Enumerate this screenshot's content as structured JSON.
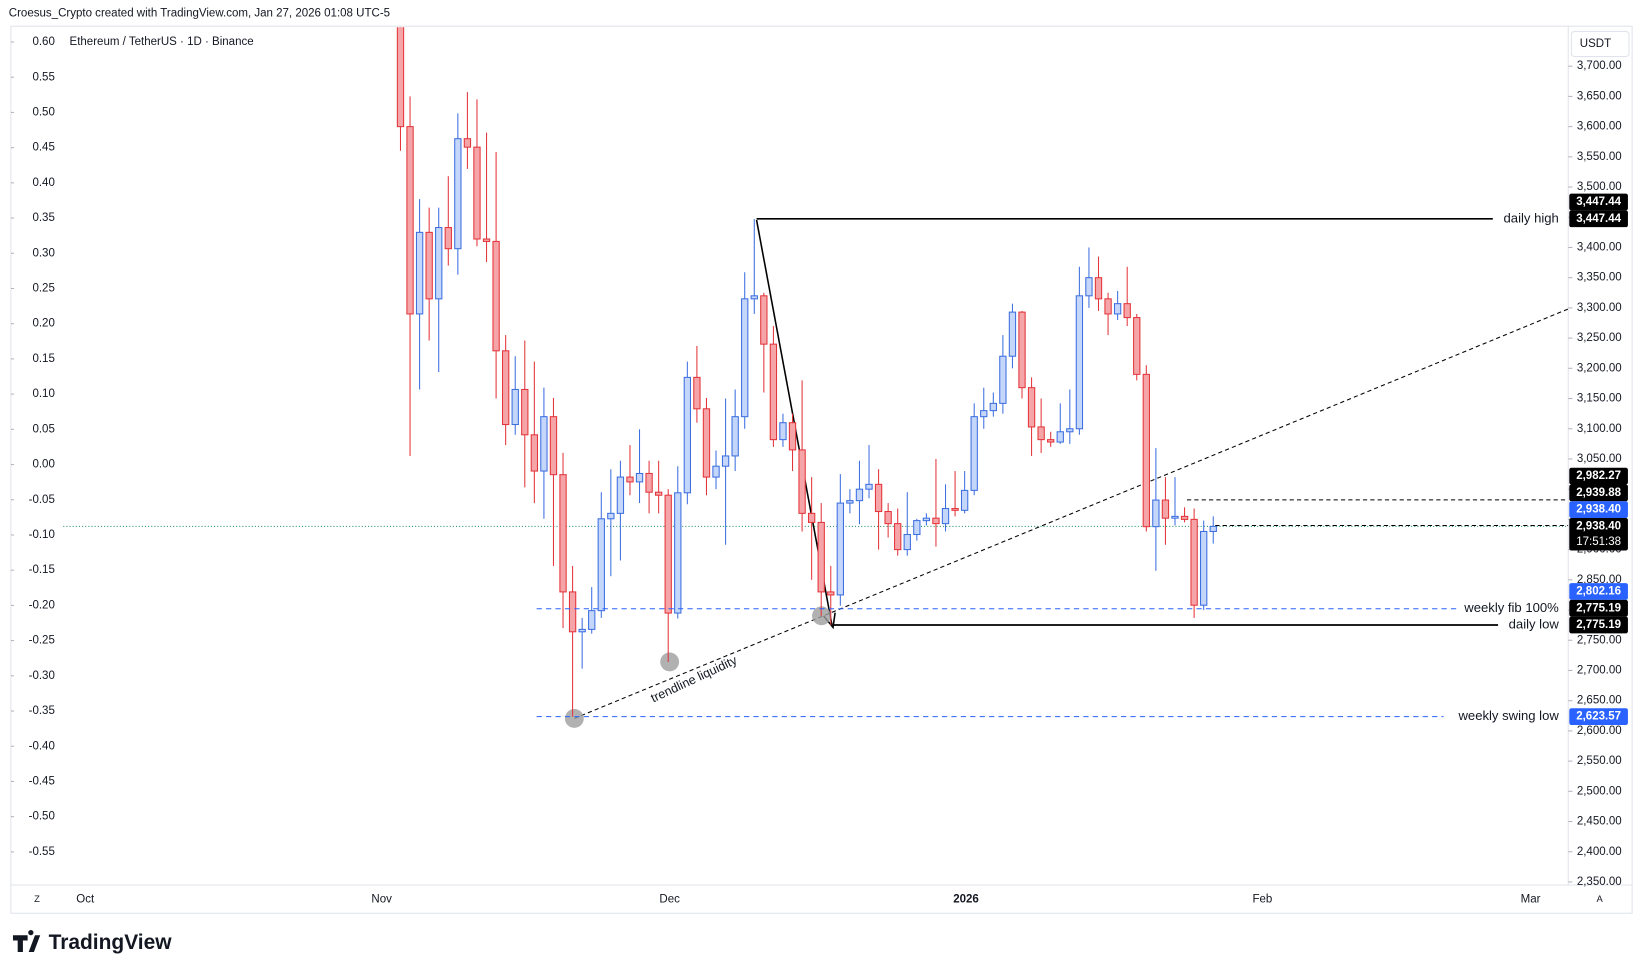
{
  "header": "Croesus_Crypto created with TradingView.com, Jan 27, 2026 01:08 UTC-5",
  "brand": "TradingView",
  "chart_data": {
    "type": "candlestick",
    "title": "Ethereum / TetherUS · 1D · Binance",
    "currency": "USDT",
    "up_color": "#3d6fe0",
    "up_fill": "#c4d6fa",
    "down_color": "#e3353b",
    "down_fill": "#f5a5a7",
    "open": [
      3880,
      3600,
      3290,
      3425,
      3315,
      3433,
      3398,
      3580,
      3566,
      3414,
      3410,
      3229,
      3107,
      3165,
      3090,
      3030,
      3120,
      3024,
      2830,
      2764,
      2768,
      2799,
      2951,
      2960,
      3020,
      3012,
      3026,
      2995,
      2990,
      2795,
      2994,
      3185,
      3133,
      3020,
      3038,
      3055,
      3120,
      3315,
      3320,
      3240,
      3082,
      3110,
      3065,
      2960,
      2945,
      2830,
      2825,
      2977,
      2981,
      3000,
      3008,
      2963,
      2943,
      2900,
      2925,
      2948,
      2952,
      2943,
      2968,
      2965,
      2998,
      3120,
      3130,
      3142,
      3220,
      3293,
      3168,
      3103,
      3082,
      3078,
      3095,
      3100,
      3320,
      3350,
      3315,
      3290,
      3307,
      3284,
      3190,
      2938,
      2982,
      2952,
      2955,
      2950,
      2808,
      2930
    ],
    "high": [
      3920,
      3650,
      3480,
      3466,
      3466,
      3518,
      3622,
      3657,
      3645,
      3590,
      3558,
      3255,
      3220,
      3246,
      3211,
      3168,
      3151,
      3060,
      2873,
      2787,
      2838,
      2995,
      3033,
      3047,
      3073,
      3099,
      3047,
      3047,
      3000,
      3038,
      3211,
      3237,
      3151,
      3064,
      3150,
      3165,
      3359,
      3447,
      3325,
      3270,
      3125,
      3125,
      3180,
      3020,
      2977,
      2873,
      3025,
      3000,
      3047,
      3073,
      3033,
      2977,
      2968,
      2995,
      2951,
      2960,
      3050,
      3008,
      3030,
      3030,
      3142,
      3168,
      3160,
      3255,
      3307,
      3295,
      3185,
      3150,
      3095,
      3142,
      3165,
      3368,
      3400,
      3385,
      3325,
      3328,
      3368,
      3290,
      3205,
      3068,
      3020,
      3020,
      2970,
      2968,
      2948,
      2955
    ],
    "low": [
      3560,
      3055,
      3165,
      3246,
      3194,
      3370,
      3355,
      3530,
      3402,
      3376,
      3150,
      3073,
      3090,
      3003,
      2977,
      2951,
      2873,
      2770,
      2623.57,
      2703,
      2761,
      2787,
      2856,
      2882,
      2990,
      2977,
      2960,
      2960,
      2714,
      2786,
      2975,
      3110,
      2990,
      3000,
      2908,
      3030,
      3100,
      3290,
      3160,
      3070,
      3070,
      3030,
      2930,
      2850,
      2790,
      2775.19,
      2807,
      2960,
      2942,
      2985,
      2900,
      2920,
      2890,
      2890,
      2915,
      2940,
      2905,
      2930,
      2955,
      2960,
      2990,
      3100,
      3120,
      3125,
      3200,
      3150,
      3055,
      3060,
      3070,
      3075,
      3075,
      3090,
      3300,
      3295,
      3255,
      3280,
      3270,
      3180,
      2930,
      2865,
      2908,
      2940,
      2945,
      2787,
      2800,
      2910
    ],
    "close": [
      3600,
      3290,
      3425,
      3315,
      3433,
      3398,
      3580,
      3566,
      3414,
      3410,
      3229,
      3107,
      3165,
      3090,
      3030,
      3120,
      3024,
      2830,
      2764,
      2768,
      2799,
      2951,
      2960,
      3020,
      3012,
      3026,
      2995,
      2990,
      2795,
      2994,
      3185,
      3133,
      3020,
      3038,
      3055,
      3120,
      3315,
      3320,
      3240,
      3082,
      3110,
      3065,
      2960,
      2945,
      2830,
      2825,
      2977,
      2981,
      3000,
      3008,
      2963,
      2943,
      2900,
      2925,
      2948,
      2952,
      2943,
      2968,
      2965,
      2998,
      3120,
      3130,
      3142,
      3220,
      3293,
      3168,
      3103,
      3082,
      3078,
      3095,
      3100,
      3320,
      3350,
      3315,
      3290,
      3307,
      3284,
      3190,
      2938,
      2982,
      2952,
      2955,
      2950,
      2808,
      2930,
      2938.4
    ],
    "xticks": [
      "Oct",
      "Nov",
      "Dec",
      "2026",
      "Feb",
      "Mar"
    ],
    "ylim": [
      2345,
      3761
    ],
    "yticks": [
      {
        "value": 3700,
        "label": "3,700.00"
      },
      {
        "value": 3650,
        "label": "3,650.00"
      },
      {
        "value": 3600,
        "label": "3,600.00"
      },
      {
        "value": 3550,
        "label": "3,550.00"
      },
      {
        "value": 3500,
        "label": "3,500.00"
      },
      {
        "value": 3450,
        "label": "3,450.00"
      },
      {
        "value": 3400,
        "label": "3,400.00"
      },
      {
        "value": 3350,
        "label": "3,350.00"
      },
      {
        "value": 3300,
        "label": "3,300.00"
      },
      {
        "value": 3250,
        "label": "3,250.00"
      },
      {
        "value": 3200,
        "label": "3,200.00"
      },
      {
        "value": 3150,
        "label": "3,150.00"
      },
      {
        "value": 3100,
        "label": "3,100.00"
      },
      {
        "value": 3050,
        "label": "3,050.00"
      },
      {
        "value": 3000,
        "label": "3,000.00"
      },
      {
        "value": 2950,
        "label": "2,950.00"
      },
      {
        "value": 2900,
        "label": "2,900.00"
      },
      {
        "value": 2850,
        "label": "2,850.00"
      },
      {
        "value": 2800,
        "label": "2,800.00"
      },
      {
        "value": 2750,
        "label": "2,750.00"
      },
      {
        "value": 2700,
        "label": "2,700.00"
      },
      {
        "value": 2650,
        "label": "2,650.00"
      },
      {
        "value": 2600,
        "label": "2,600.00"
      },
      {
        "value": 2550,
        "label": "2,550.00"
      },
      {
        "value": 2500,
        "label": "2,500.00"
      },
      {
        "value": 2450,
        "label": "2,450.00"
      },
      {
        "value": 2400,
        "label": "2,400.00"
      },
      {
        "value": 2350,
        "label": "2,350.00"
      }
    ],
    "y2lim": [
      -0.597,
      0.618
    ],
    "y2ticks": [
      {
        "value": 0.6,
        "label": "0.60"
      },
      0.55,
      {
        "value": 0.5,
        "label": "0.50"
      },
      0.45,
      {
        "value": 0.4,
        "label": "0.40"
      },
      0.35,
      {
        "value": 0.3,
        "label": "0.30"
      },
      0.25,
      {
        "value": 0.2,
        "label": "0.20"
      },
      0.15,
      {
        "value": 0.1,
        "label": "0.10"
      },
      0.05,
      {
        "value": 0,
        "label": "0.00"
      },
      -0.05,
      {
        "value": -0.1,
        "label": "-0.10"
      },
      -0.15,
      {
        "value": -0.2,
        "label": "-0.20"
      },
      -0.25,
      {
        "value": -0.3,
        "label": "-0.30"
      },
      -0.35,
      {
        "value": -0.4,
        "label": "-0.40"
      },
      -0.45,
      {
        "value": -0.5,
        "label": "-0.50"
      },
      -0.55
    ],
    "levels": [
      {
        "name": "daily high",
        "value": 3447.44,
        "color": "#000000",
        "style": "solid"
      },
      {
        "name": "daily low",
        "value": 2775.19,
        "color": "#000000",
        "style": "solid"
      },
      {
        "name": "weekly fib 100%",
        "value": 2802.16,
        "color": "#2962ff",
        "style": "dashed"
      },
      {
        "name": "weekly swing low",
        "value": 2623.57,
        "color": "#2962ff",
        "style": "dashed"
      }
    ],
    "annotation": "trendline liquidity",
    "price_tags": [
      {
        "value": 3447.44,
        "label": "3,447.44",
        "color": "#000000"
      },
      {
        "value": 3447.44,
        "label": "3,447.44",
        "color": "#000000"
      },
      {
        "value": 2982.27,
        "label": "2,982.27",
        "color": "#000000"
      },
      {
        "value": 2939.88,
        "label": "2,939.88",
        "color": "#000000"
      },
      {
        "value": 2938.4,
        "label": "2,938.40",
        "color": "#2962ff"
      },
      {
        "value": 2938.4,
        "label": "2,938.40",
        "color": "#000000",
        "countdown": "17:51:38"
      },
      {
        "value": 2802.16,
        "label": "2,802.16",
        "color": "#2962ff"
      },
      {
        "value": 2775.19,
        "label": "2,775.19",
        "color": "#000000"
      },
      {
        "value": 2775.19,
        "label": "2,775.19",
        "color": "#000000"
      },
      {
        "value": 2623.57,
        "label": "2,623.57",
        "color": "#2962ff"
      }
    ]
  }
}
